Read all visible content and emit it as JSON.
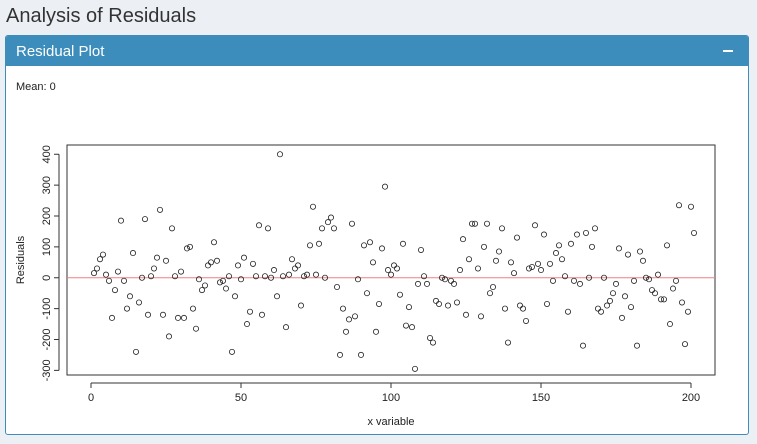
{
  "page": {
    "title": "Analysis of Residuals"
  },
  "panel": {
    "title": "Residual Plot",
    "mean_text": "Mean: 0"
  },
  "colors": {
    "header": "#3c8dbc",
    "zero_line": "#f08080"
  },
  "icons": {
    "collapse": "minus-icon"
  },
  "chart_data": {
    "type": "scatter",
    "xlabel": "x variable",
    "ylabel": "Residuals",
    "xlim": [
      -8,
      208
    ],
    "ylim": [
      -315,
      430
    ],
    "xticks": [
      0,
      50,
      100,
      150,
      200
    ],
    "yticks": [
      -300,
      -200,
      -100,
      0,
      100,
      200,
      300,
      400
    ],
    "reference_line": 0,
    "points": [
      [
        1,
        15
      ],
      [
        2,
        30
      ],
      [
        3,
        60
      ],
      [
        4,
        75
      ],
      [
        5,
        10
      ],
      [
        6,
        -10
      ],
      [
        7,
        -130
      ],
      [
        8,
        -40
      ],
      [
        9,
        20
      ],
      [
        10,
        185
      ],
      [
        11,
        -10
      ],
      [
        12,
        -100
      ],
      [
        13,
        -60
      ],
      [
        14,
        80
      ],
      [
        15,
        -240
      ],
      [
        16,
        -80
      ],
      [
        17,
        0
      ],
      [
        18,
        190
      ],
      [
        19,
        -120
      ],
      [
        20,
        5
      ],
      [
        21,
        30
      ],
      [
        22,
        65
      ],
      [
        23,
        220
      ],
      [
        24,
        -120
      ],
      [
        25,
        55
      ],
      [
        26,
        -190
      ],
      [
        27,
        160
      ],
      [
        28,
        5
      ],
      [
        29,
        -130
      ],
      [
        30,
        20
      ],
      [
        31,
        -130
      ],
      [
        32,
        95
      ],
      [
        33,
        100
      ],
      [
        34,
        -100
      ],
      [
        35,
        -165
      ],
      [
        36,
        -5
      ],
      [
        37,
        -40
      ],
      [
        38,
        -25
      ],
      [
        39,
        40
      ],
      [
        40,
        50
      ],
      [
        41,
        115
      ],
      [
        42,
        55
      ],
      [
        43,
        -15
      ],
      [
        44,
        -10
      ],
      [
        45,
        -35
      ],
      [
        46,
        5
      ],
      [
        47,
        -240
      ],
      [
        48,
        -60
      ],
      [
        49,
        40
      ],
      [
        50,
        -5
      ],
      [
        51,
        65
      ],
      [
        52,
        -150
      ],
      [
        53,
        -110
      ],
      [
        54,
        45
      ],
      [
        55,
        5
      ],
      [
        56,
        170
      ],
      [
        57,
        -120
      ],
      [
        58,
        5
      ],
      [
        59,
        160
      ],
      [
        60,
        0
      ],
      [
        61,
        25
      ],
      [
        62,
        -60
      ],
      [
        63,
        400
      ],
      [
        64,
        5
      ],
      [
        65,
        -160
      ],
      [
        66,
        10
      ],
      [
        67,
        60
      ],
      [
        68,
        30
      ],
      [
        69,
        40
      ],
      [
        70,
        -90
      ],
      [
        71,
        5
      ],
      [
        72,
        10
      ],
      [
        73,
        105
      ],
      [
        74,
        230
      ],
      [
        75,
        10
      ],
      [
        76,
        110
      ],
      [
        77,
        160
      ],
      [
        78,
        0
      ],
      [
        79,
        180
      ],
      [
        80,
        195
      ],
      [
        81,
        160
      ],
      [
        82,
        -30
      ],
      [
        83,
        -250
      ],
      [
        84,
        -100
      ],
      [
        85,
        -175
      ],
      [
        86,
        -135
      ],
      [
        87,
        175
      ],
      [
        88,
        -125
      ],
      [
        89,
        -5
      ],
      [
        90,
        -250
      ],
      [
        91,
        105
      ],
      [
        92,
        -50
      ],
      [
        93,
        115
      ],
      [
        94,
        50
      ],
      [
        95,
        -175
      ],
      [
        96,
        -85
      ],
      [
        97,
        95
      ],
      [
        98,
        295
      ],
      [
        99,
        25
      ],
      [
        100,
        10
      ],
      [
        101,
        40
      ],
      [
        102,
        30
      ],
      [
        103,
        -55
      ],
      [
        104,
        110
      ],
      [
        105,
        -155
      ],
      [
        106,
        -95
      ],
      [
        107,
        -160
      ],
      [
        108,
        -295
      ],
      [
        109,
        -20
      ],
      [
        110,
        90
      ],
      [
        111,
        5
      ],
      [
        112,
        -20
      ],
      [
        113,
        -195
      ],
      [
        114,
        -210
      ],
      [
        115,
        -75
      ],
      [
        116,
        -85
      ],
      [
        117,
        0
      ],
      [
        118,
        -5
      ],
      [
        119,
        -90
      ],
      [
        120,
        -10
      ],
      [
        121,
        -20
      ],
      [
        122,
        -80
      ],
      [
        123,
        25
      ],
      [
        124,
        125
      ],
      [
        125,
        -120
      ],
      [
        126,
        60
      ],
      [
        127,
        175
      ],
      [
        128,
        175
      ],
      [
        129,
        30
      ],
      [
        130,
        -125
      ],
      [
        131,
        100
      ],
      [
        132,
        175
      ],
      [
        133,
        -50
      ],
      [
        134,
        -30
      ],
      [
        135,
        55
      ],
      [
        136,
        85
      ],
      [
        137,
        160
      ],
      [
        138,
        -100
      ],
      [
        139,
        -210
      ],
      [
        140,
        50
      ],
      [
        141,
        15
      ],
      [
        142,
        130
      ],
      [
        143,
        -90
      ],
      [
        144,
        -100
      ],
      [
        145,
        -140
      ],
      [
        146,
        30
      ],
      [
        147,
        35
      ],
      [
        148,
        170
      ],
      [
        149,
        45
      ],
      [
        150,
        25
      ],
      [
        151,
        140
      ],
      [
        152,
        -85
      ],
      [
        153,
        45
      ],
      [
        154,
        -10
      ],
      [
        155,
        80
      ],
      [
        156,
        105
      ],
      [
        157,
        60
      ],
      [
        158,
        5
      ],
      [
        159,
        -110
      ],
      [
        160,
        110
      ],
      [
        161,
        -10
      ],
      [
        162,
        140
      ],
      [
        163,
        -20
      ],
      [
        164,
        -220
      ],
      [
        165,
        145
      ],
      [
        166,
        0
      ],
      [
        167,
        100
      ],
      [
        168,
        160
      ],
      [
        169,
        -100
      ],
      [
        170,
        -110
      ],
      [
        171,
        0
      ],
      [
        172,
        -90
      ],
      [
        173,
        -75
      ],
      [
        174,
        -50
      ],
      [
        175,
        -20
      ],
      [
        176,
        95
      ],
      [
        177,
        -130
      ],
      [
        178,
        -60
      ],
      [
        179,
        75
      ],
      [
        180,
        -95
      ],
      [
        181,
        -10
      ],
      [
        182,
        -220
      ],
      [
        183,
        85
      ],
      [
        184,
        55
      ],
      [
        185,
        0
      ],
      [
        186,
        -5
      ],
      [
        187,
        -40
      ],
      [
        188,
        -50
      ],
      [
        189,
        10
      ],
      [
        190,
        -70
      ],
      [
        191,
        -70
      ],
      [
        192,
        105
      ],
      [
        193,
        -150
      ],
      [
        194,
        -35
      ],
      [
        195,
        -10
      ],
      [
        196,
        235
      ],
      [
        197,
        -80
      ],
      [
        198,
        -215
      ],
      [
        199,
        -110
      ],
      [
        200,
        230
      ],
      [
        201,
        145
      ]
    ]
  }
}
